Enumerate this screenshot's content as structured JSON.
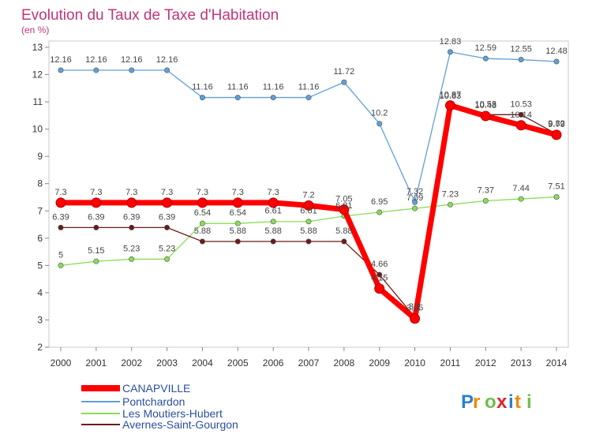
{
  "chart_data": {
    "type": "line",
    "title": "Evolution du Taux de Taxe d'Habitation",
    "subtitle": "(en %)",
    "xlabel": "",
    "ylabel": "",
    "x": [
      2000,
      2001,
      2002,
      2003,
      2004,
      2005,
      2006,
      2007,
      2008,
      2009,
      2010,
      2011,
      2012,
      2013,
      2014
    ],
    "ylim": [
      2,
      13
    ],
    "yticks": [
      2,
      3,
      4,
      5,
      6,
      7,
      8,
      9,
      10,
      11,
      12,
      13
    ],
    "grid": false,
    "legend_position": "bottom-left",
    "series": [
      {
        "name": "CANAPVILLE",
        "color": "#ff0000",
        "values": [
          7.3,
          7.3,
          7.3,
          7.3,
          7.3,
          7.3,
          7.3,
          7.2,
          7.05,
          4.15,
          3.05,
          10.87,
          10.48,
          10.14,
          9.79
        ],
        "labels": [
          "7.3",
          "7.3",
          "7.3",
          "7.3",
          "7.3",
          "7.3",
          "7.3",
          "7.2",
          "7.05",
          "4.15",
          "3.05",
          "10.87",
          "10.48",
          "10.14",
          "9.79"
        ]
      },
      {
        "name": "Pontchardon",
        "color": "#5fa0d8",
        "values": [
          12.16,
          12.16,
          12.16,
          12.16,
          11.16,
          11.16,
          11.16,
          11.16,
          11.72,
          10.2,
          7.32,
          12.83,
          12.59,
          12.55,
          12.48
        ],
        "labels": [
          "12.16",
          "12.16",
          "12.16",
          "12.16",
          "11.16",
          "11.16",
          "11.16",
          "11.16",
          "11.72",
          "10.2",
          "7.32",
          "12.83",
          "12.59",
          "12.55",
          "12.48"
        ]
      },
      {
        "name": "Les Moutiers-Hubert",
        "color": "#88dd55",
        "values": [
          5,
          5.15,
          5.23,
          5.23,
          6.54,
          6.54,
          6.61,
          6.61,
          6.81,
          6.95,
          7.09,
          7.23,
          7.37,
          7.44,
          7.51
        ],
        "labels": [
          "5",
          "5.15",
          "5.23",
          "5.23",
          "6.54",
          "6.54",
          "6.61",
          "6.61",
          "6.81",
          "6.95",
          "7.09",
          "7.23",
          "7.37",
          "7.44",
          "7.51"
        ]
      },
      {
        "name": "Avernes-Saint-Gourgon",
        "color": "#6b1a1a",
        "values": [
          6.39,
          6.39,
          6.39,
          6.39,
          5.88,
          5.88,
          5.88,
          5.88,
          5.88,
          4.66,
          3.1,
          10.83,
          10.53,
          10.53,
          9.82
        ],
        "labels": [
          "6.39",
          "6.39",
          "6.39",
          "6.39",
          "5.88",
          "5.88",
          "5.88",
          "5.88",
          "5.88",
          "4.66",
          "3.1",
          "10.83",
          "10.53",
          "10.53",
          "9.82"
        ]
      }
    ]
  },
  "logo": {
    "text": "Proxiti",
    "colors": [
      "#2a7fd0",
      "#f08a00",
      "#6cc04a",
      "#e3222a",
      "#2a7fd0",
      "#f08a00",
      "#6cc04a"
    ]
  }
}
